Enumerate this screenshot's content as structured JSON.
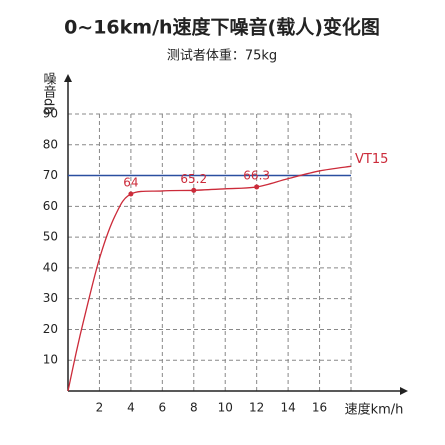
{
  "chart_data": {
    "type": "line",
    "title": "0~16km/h速度下噪音(载人)变化图",
    "subtitle": "测试者体重：75kg",
    "y_label": "噪音db",
    "x_label": "速度km/h",
    "xlim": [
      0,
      18
    ],
    "ylim": [
      0,
      90
    ],
    "xticks": [
      2,
      4,
      6,
      8,
      10,
      12,
      14,
      16
    ],
    "yticks": [
      10,
      20,
      30,
      40,
      50,
      60,
      70,
      80,
      90
    ],
    "grid": true,
    "x": [
      0,
      0.5,
      1,
      2,
      3,
      4,
      6,
      8,
      10,
      12,
      14,
      16,
      18
    ],
    "series": [
      {
        "name": "VT15",
        "color": "#cc2b3a",
        "values": [
          0,
          12,
          23,
          43,
          57,
          64,
          65,
          65.2,
          65.7,
          66.3,
          69,
          71.5,
          73
        ]
      }
    ],
    "annotations": [
      {
        "x": 4,
        "value": 64
      },
      {
        "x": 8,
        "value": 65.2
      },
      {
        "x": 12,
        "value": 66.3
      }
    ],
    "hlines": [
      {
        "value": 70,
        "color": "#2a4fa0"
      }
    ]
  }
}
